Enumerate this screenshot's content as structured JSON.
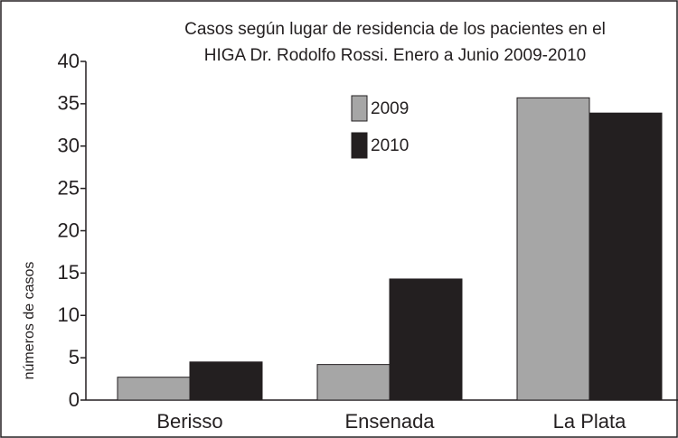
{
  "chart_data": {
    "type": "bar",
    "title": [
      "Casos según lugar de residencia de los pacientes en el",
      "HIGA Dr. Rodolfo Rossi. Enero a Junio 2009-2010"
    ],
    "y_label": "números de casos",
    "categories": [
      "Berisso",
      "Ensenada",
      "La Plata"
    ],
    "series": [
      {
        "name": "2009",
        "color": "#a6a6a6",
        "values": [
          2.7,
          4.2,
          35.7
        ]
      },
      {
        "name": "2010",
        "color": "#231f20",
        "values": [
          4.5,
          14.3,
          33.9
        ]
      }
    ],
    "ylim": [
      0,
      40
    ],
    "yticks": [
      0,
      5,
      10,
      15,
      20,
      25,
      30,
      35,
      40
    ]
  }
}
